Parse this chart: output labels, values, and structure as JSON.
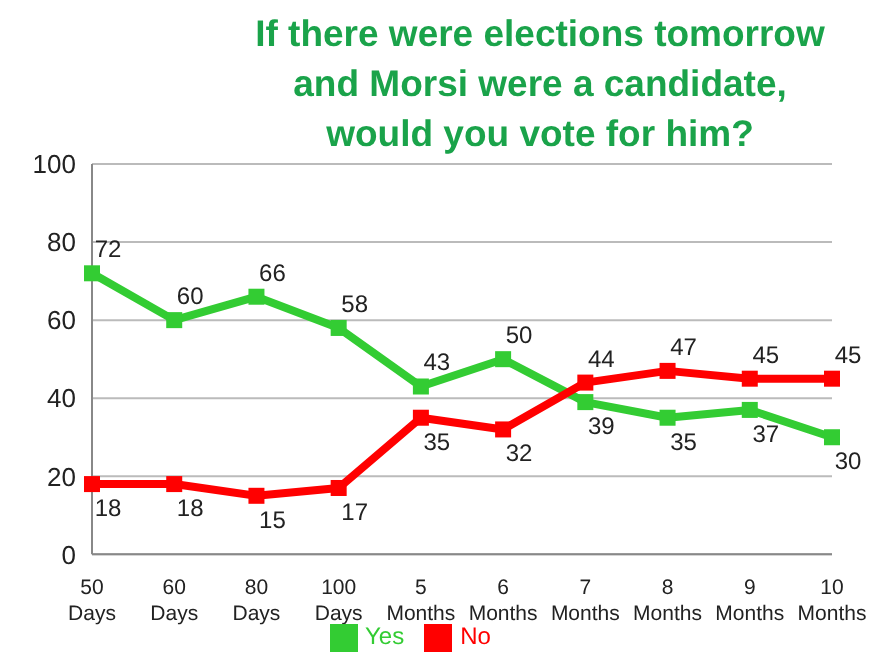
{
  "chart_data": {
    "type": "line",
    "title": "If there were elections tomorrow and Morsi were a candidate, would you vote for him?",
    "categories": [
      "50 Days",
      "60 Days",
      "80 Days",
      "100 Days",
      "5 Months",
      "6 Months",
      "7 Months",
      "8 Months",
      "9 Months",
      "10 Months"
    ],
    "series": [
      {
        "name": "Yes",
        "color": "#33cc33",
        "values": [
          72,
          60,
          66,
          58,
          43,
          50,
          39,
          35,
          37,
          30
        ]
      },
      {
        "name": "No",
        "color": "#ff0000",
        "values": [
          18,
          18,
          15,
          17,
          35,
          32,
          44,
          47,
          45,
          45
        ]
      }
    ],
    "ylim": [
      0,
      100
    ],
    "yticks": [
      0,
      20,
      40,
      60,
      80,
      100
    ],
    "grid": "y",
    "legend": "bottom",
    "marker": "square",
    "line_style": "solid",
    "data_labels": true
  }
}
